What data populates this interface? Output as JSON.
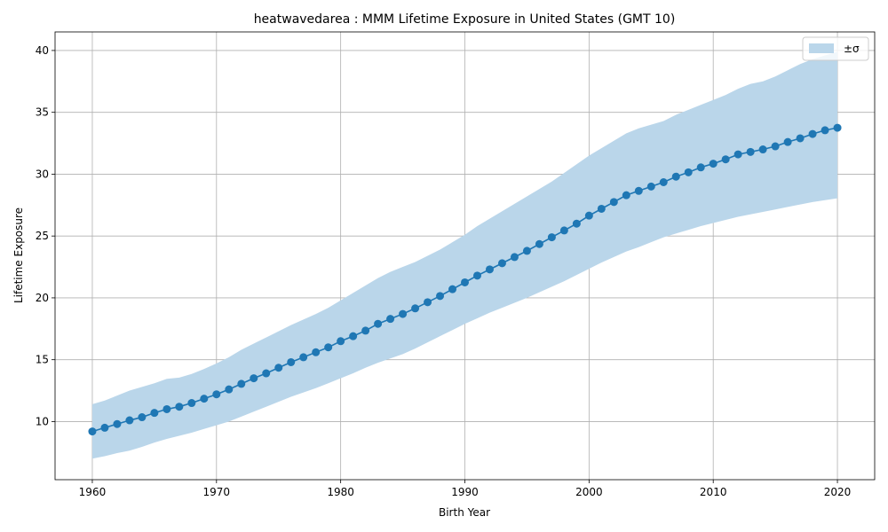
{
  "chart_data": {
    "type": "line",
    "title": "heatwavedarea : MMM Lifetime Exposure in United States (GMT 10)",
    "xlabel": "Birth Year",
    "ylabel": "Lifetime Exposure",
    "xlim": [
      1957,
      2023
    ],
    "ylim": [
      5.3,
      41.5
    ],
    "xticks": [
      1960,
      1970,
      1980,
      1990,
      2000,
      2010,
      2020
    ],
    "yticks": [
      10,
      15,
      20,
      25,
      30,
      35,
      40
    ],
    "xtick_labels": [
      "1960",
      "1970",
      "1980",
      "1990",
      "2000",
      "2010",
      "2020"
    ],
    "ytick_labels": [
      "10",
      "15",
      "20",
      "25",
      "30",
      "35",
      "40"
    ],
    "grid": true,
    "legend_position": "top-right",
    "legend": [
      {
        "label": "±σ",
        "color": "#bad6ea"
      }
    ],
    "colors": {
      "line": "#1f77b4",
      "band": "#bad6ea",
      "grid": "#b0b0b0"
    },
    "x": [
      1960,
      1961,
      1962,
      1963,
      1964,
      1965,
      1966,
      1967,
      1968,
      1969,
      1970,
      1971,
      1972,
      1973,
      1974,
      1975,
      1976,
      1977,
      1978,
      1979,
      1980,
      1981,
      1982,
      1983,
      1984,
      1985,
      1986,
      1987,
      1988,
      1989,
      1990,
      1991,
      1992,
      1993,
      1994,
      1995,
      1996,
      1997,
      1998,
      1999,
      2000,
      2001,
      2002,
      2003,
      2004,
      2005,
      2006,
      2007,
      2008,
      2009,
      2010,
      2011,
      2012,
      2013,
      2014,
      2015,
      2016,
      2017,
      2018,
      2019,
      2020
    ],
    "series": [
      {
        "values": [
          9.2,
          9.5,
          9.8,
          10.1,
          10.35,
          10.7,
          11.0,
          11.2,
          11.5,
          11.85,
          12.2,
          12.6,
          13.05,
          13.5,
          13.9,
          14.35,
          14.8,
          15.2,
          15.6,
          16.0,
          16.5,
          16.9,
          17.35,
          17.9,
          18.3,
          18.7,
          19.15,
          19.65,
          20.15,
          20.7,
          21.25,
          21.8,
          22.3,
          22.8,
          23.3,
          23.8,
          24.35,
          24.9,
          25.45,
          26.0,
          26.65,
          27.2,
          27.75,
          28.3,
          28.65,
          29.0,
          29.35,
          29.8,
          30.15,
          30.55,
          30.85,
          31.2,
          31.6,
          31.8,
          32.0,
          32.25,
          32.6,
          32.9,
          33.25,
          33.55,
          33.75
        ]
      }
    ],
    "band": {
      "upper": [
        11.4,
        11.7,
        12.1,
        12.5,
        12.8,
        13.1,
        13.45,
        13.55,
        13.85,
        14.25,
        14.7,
        15.2,
        15.8,
        16.3,
        16.8,
        17.3,
        17.8,
        18.25,
        18.7,
        19.2,
        19.8,
        20.4,
        21.0,
        21.6,
        22.1,
        22.5,
        22.9,
        23.4,
        23.9,
        24.5,
        25.1,
        25.8,
        26.4,
        27.0,
        27.6,
        28.2,
        28.8,
        29.4,
        30.1,
        30.8,
        31.5,
        32.1,
        32.7,
        33.3,
        33.7,
        34.0,
        34.3,
        34.8,
        35.2,
        35.6,
        36.0,
        36.4,
        36.9,
        37.3,
        37.5,
        37.9,
        38.4,
        38.9,
        39.3,
        39.6,
        39.9
      ],
      "lower": [
        7.0,
        7.2,
        7.45,
        7.65,
        7.95,
        8.3,
        8.6,
        8.85,
        9.1,
        9.4,
        9.7,
        10.0,
        10.4,
        10.8,
        11.2,
        11.6,
        12.0,
        12.35,
        12.7,
        13.1,
        13.5,
        13.9,
        14.35,
        14.75,
        15.1,
        15.45,
        15.9,
        16.4,
        16.9,
        17.4,
        17.9,
        18.35,
        18.8,
        19.2,
        19.6,
        20.0,
        20.45,
        20.9,
        21.35,
        21.85,
        22.35,
        22.85,
        23.3,
        23.75,
        24.1,
        24.5,
        24.9,
        25.2,
        25.5,
        25.8,
        26.05,
        26.3,
        26.55,
        26.75,
        26.95,
        27.15,
        27.35,
        27.55,
        27.75,
        27.9,
        28.05
      ]
    }
  }
}
